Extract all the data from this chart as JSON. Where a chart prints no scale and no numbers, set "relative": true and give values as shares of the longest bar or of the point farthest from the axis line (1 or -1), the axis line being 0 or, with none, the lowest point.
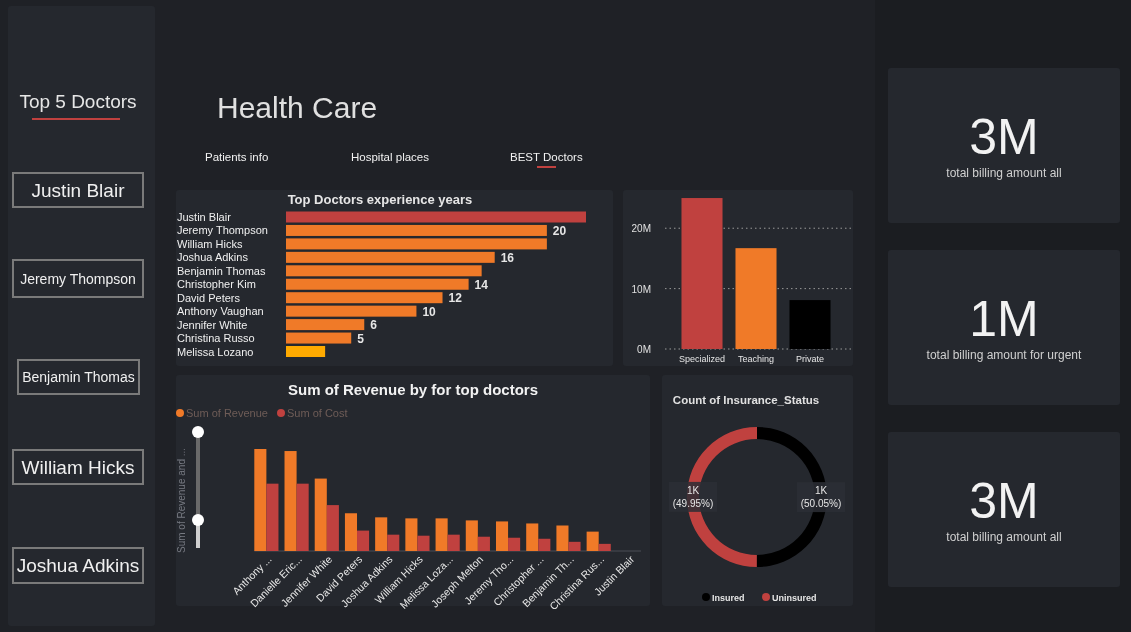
{
  "chart_data": [
    {
      "type": "other",
      "title": "Top 5 Doctors",
      "annotations": [
        "Justin Blair",
        "Jeremy Thompson",
        "Benjamin Thomas",
        "William Hicks",
        "Joshua Adkins"
      ]
    },
    {
      "type": "other",
      "title": "Health Care",
      "annotations": [
        "Patients info",
        "Hospital places",
        "BEST Doctors"
      ]
    },
    {
      "type": "bar",
      "orientation": "horizontal",
      "title": "Top Doctors experience years",
      "categories": [
        "Justin Blair",
        "Jeremy Thompson",
        "William Hicks",
        "Joshua Adkins",
        "Benjamin Thomas",
        "Christopher Kim",
        "David Peters",
        "Anthony Vaughan",
        "Jennifer White",
        "Christina Russo",
        "Melissa Lozano"
      ],
      "values": [
        23,
        20,
        20,
        16,
        15,
        14,
        12,
        10,
        6,
        5,
        3
      ],
      "value_labels": [
        null,
        "20",
        null,
        "16",
        null,
        "14",
        "12",
        "10",
        "6",
        "5",
        null
      ],
      "colors": [
        "#c0413f",
        "#f07a28",
        "#f07a28",
        "#f07a28",
        "#f07a28",
        "#f07a28",
        "#f07a28",
        "#f07a28",
        "#f07a28",
        "#f07a28",
        "#ffaa00"
      ]
    },
    {
      "type": "bar",
      "categories": [
        "Specialized",
        "Teaching",
        "Private"
      ],
      "values": [
        25,
        16.7,
        8.1
      ],
      "colors": [
        "#c0413f",
        "#f07a28",
        "#000000"
      ],
      "ylim": [
        0,
        26
      ],
      "yticks": [
        {
          "value": 0,
          "label": "0M"
        },
        {
          "value": 10,
          "label": "10M"
        },
        {
          "value": 20,
          "label": "20M"
        }
      ],
      "grid": "y"
    },
    {
      "type": "bar",
      "relative": true,
      "title": "Sum of Revenue by for top doctors",
      "ylabel": "Sum of Revenue and ...",
      "legend": "top left",
      "categories": [
        "Anthony ...",
        "Danielle Eric...",
        "Jennifer White",
        "David Peters",
        "Joshua Adkins",
        "William Hicks",
        "Melissa Loza...",
        "Joseph Melton",
        "Jeremy Tho...",
        "Christopher ...",
        "Benjamin Th...",
        "Christina Rus...",
        "Justin Blair"
      ],
      "series": [
        {
          "name": "Sum of Revenue",
          "color": "#f07a28",
          "values": [
            1,
            0.98,
            0.71,
            0.37,
            0.33,
            0.32,
            0.32,
            0.3,
            0.29,
            0.27,
            0.25,
            0.19,
            null
          ]
        },
        {
          "name": "Sum of Cost",
          "color": "#c0413f",
          "values": [
            0.66,
            0.66,
            0.45,
            0.2,
            0.16,
            0.15,
            0.16,
            0.14,
            0.13,
            0.12,
            0.09,
            0.07,
            null
          ]
        }
      ]
    },
    {
      "type": "donut",
      "title": "Count of Insurance_Status",
      "categories": [
        "Insured",
        "Uninsured"
      ],
      "values": [
        50.05,
        49.95
      ],
      "colors": [
        "#000000",
        "#c0413f"
      ],
      "value_labels": [
        "1K (50.05%)",
        "1K (49.95%)"
      ],
      "legend": "bottom"
    },
    {
      "type": "other",
      "annotations": [
        "3M",
        "total billing amount all",
        "1M",
        "total billing amount for urgent",
        "3M",
        "total billing amount all"
      ]
    }
  ]
}
